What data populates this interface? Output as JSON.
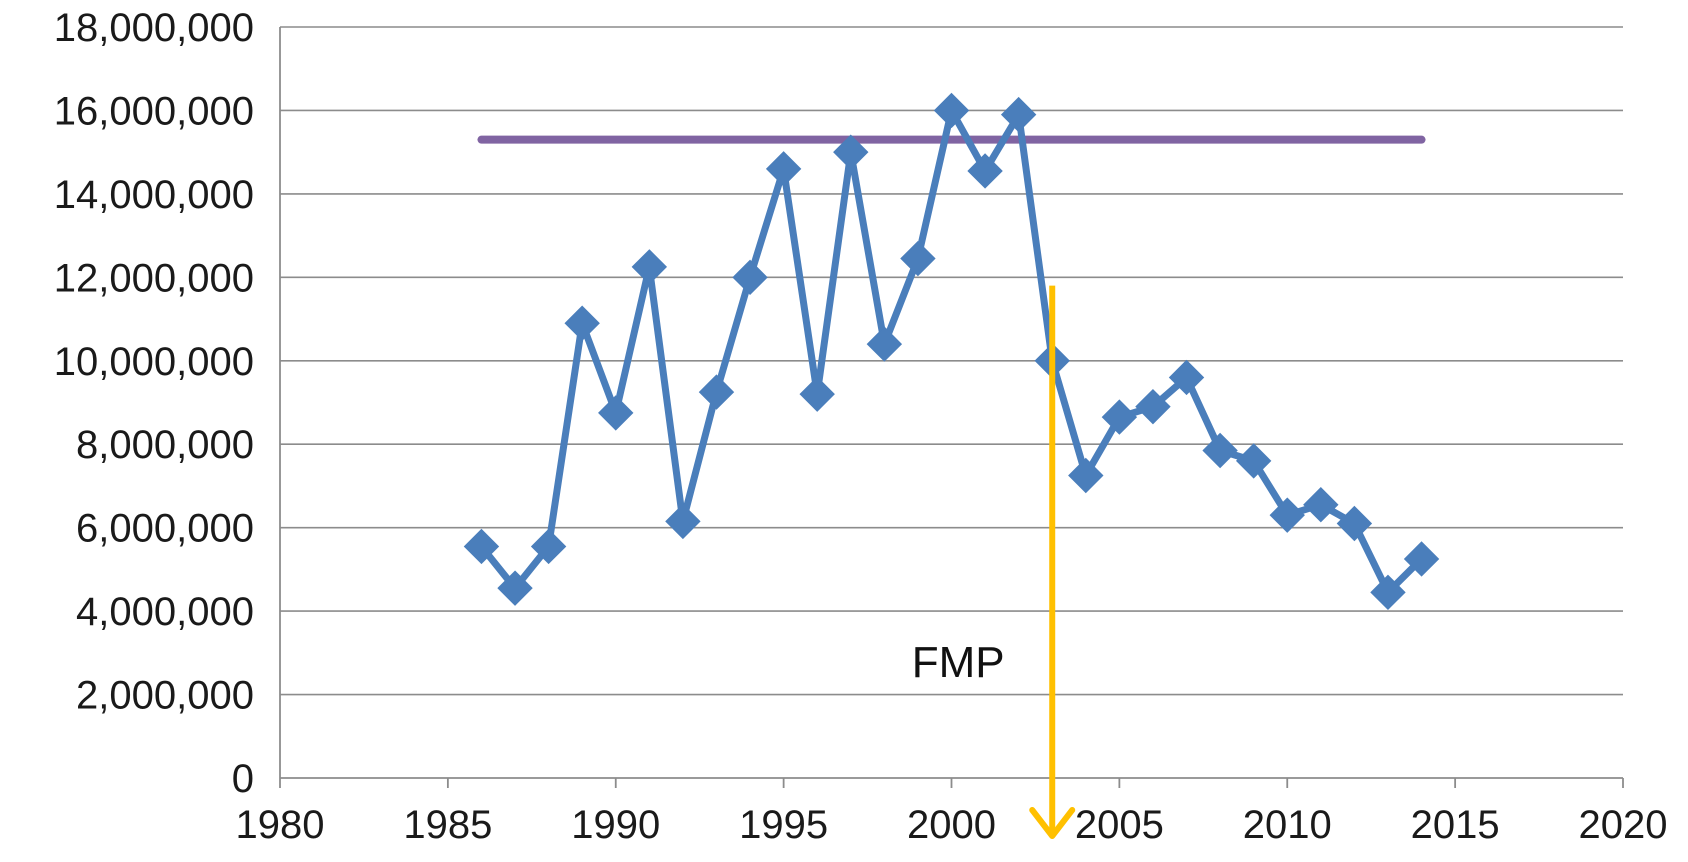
{
  "chart_data": {
    "type": "scatter",
    "title": "",
    "xlabel": "",
    "ylabel": "",
    "xlim": [
      1980,
      2020
    ],
    "ylim": [
      0,
      18000000
    ],
    "x_ticks": [
      1980,
      1985,
      1990,
      1995,
      2000,
      2005,
      2010,
      2015,
      2020
    ],
    "x_tick_labels": [
      "1980",
      "1985",
      "1990",
      "1995",
      "2000",
      "2005",
      "2010",
      "2015",
      "2020"
    ],
    "y_ticks": [
      0,
      2000000,
      4000000,
      6000000,
      8000000,
      10000000,
      12000000,
      14000000,
      16000000,
      18000000
    ],
    "y_tick_labels": [
      "0",
      "2,000,000",
      "4,000,000",
      "6,000,000",
      "8,000,000",
      "10,000,000",
      "12,000,000",
      "14,000,000",
      "16,000,000",
      "18,000,000"
    ],
    "grid": "horizontal",
    "legend": "none",
    "series": [
      {
        "type": "line-with-markers",
        "marker": "diamond",
        "color": "#4a7ebb",
        "x": [
          1986,
          1987,
          1988,
          1989,
          1990,
          1991,
          1992,
          1993,
          1994,
          1995,
          1996,
          1997,
          1998,
          1999,
          2000,
          2001,
          2002,
          2003,
          2004,
          2005,
          2006,
          2007,
          2008,
          2009,
          2010,
          2011,
          2012,
          2013,
          2014
        ],
        "y": [
          5550000,
          4550000,
          5550000,
          10900000,
          8750000,
          12250000,
          6150000,
          9250000,
          12000000,
          14600000,
          9200000,
          15000000,
          10400000,
          12450000,
          16000000,
          14550000,
          15900000,
          10000000,
          7250000,
          8650000,
          8900000,
          9600000,
          7850000,
          7600000,
          6300000,
          6550000,
          6100000,
          4450000,
          5250000
        ]
      },
      {
        "type": "reference-line",
        "color": "#8064a2",
        "x": [
          1986,
          2014
        ],
        "y": [
          15300000,
          15300000
        ]
      }
    ],
    "annotations": [
      {
        "type": "arrow",
        "color": "#ffc000",
        "x": 2003,
        "y_from": 11800000,
        "y_to": 0
      },
      {
        "type": "text",
        "text": "FMP",
        "x": 2000.2,
        "y": 2800000
      }
    ]
  }
}
